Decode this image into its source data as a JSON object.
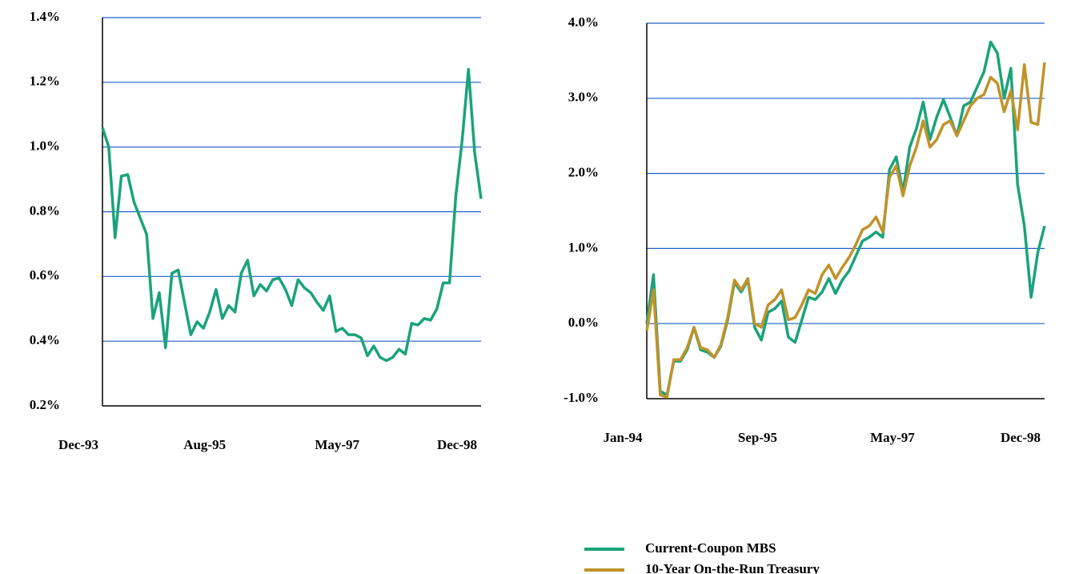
{
  "chart_data": [
    {
      "type": "line",
      "categories": [
        "Dec-93",
        null,
        null,
        null,
        null,
        null,
        null,
        null,
        null,
        null,
        null,
        null,
        null,
        null,
        null,
        null,
        null,
        null,
        null,
        null,
        "Aug-95",
        null,
        null,
        null,
        null,
        null,
        null,
        null,
        null,
        null,
        null,
        null,
        null,
        null,
        null,
        null,
        null,
        null,
        null,
        null,
        null,
        "May-97",
        null,
        null,
        null,
        null,
        null,
        null,
        null,
        null,
        null,
        null,
        null,
        null,
        null,
        null,
        null,
        null,
        null,
        null,
        "Dec-98"
      ],
      "series": [
        {
          "color": "#1aa37a",
          "values": [
            1.06,
            1.0,
            0.72,
            0.91,
            0.915,
            0.83,
            0.78,
            0.73,
            0.47,
            0.55,
            0.38,
            0.61,
            0.62,
            0.52,
            0.42,
            0.46,
            0.44,
            0.49,
            0.56,
            0.47,
            0.51,
            0.49,
            0.61,
            0.65,
            0.54,
            0.575,
            0.555,
            0.59,
            0.595,
            0.56,
            0.51,
            0.59,
            0.565,
            0.55,
            0.52,
            0.495,
            0.54,
            0.43,
            0.44,
            0.42,
            0.42,
            0.41,
            0.355,
            0.385,
            0.35,
            0.34,
            0.35,
            0.375,
            0.36,
            0.455,
            0.45,
            0.47,
            0.465,
            0.5,
            0.58,
            0.58,
            0.85,
            1.02,
            1.24,
            0.98,
            0.84
          ]
        }
      ],
      "ylim": [
        0.2,
        1.4
      ],
      "yticks": [
        {
          "value": 0.2,
          "label": "0.2%"
        },
        {
          "value": 0.4,
          "label": "0.4%"
        },
        {
          "value": 0.6,
          "label": "0.6%"
        },
        {
          "value": 0.8,
          "label": "0.8%"
        },
        {
          "value": 1.0,
          "label": "1.0%"
        },
        {
          "value": 1.2,
          "label": "1.2%"
        },
        {
          "value": 1.4,
          "label": "1.4%"
        }
      ],
      "grid": true
    },
    {
      "type": "line",
      "categories": [
        "Jan-94",
        null,
        null,
        null,
        null,
        null,
        null,
        null,
        null,
        null,
        null,
        null,
        null,
        null,
        null,
        null,
        null,
        null,
        null,
        null,
        "Sep-95",
        null,
        null,
        null,
        null,
        null,
        null,
        null,
        null,
        null,
        null,
        null,
        null,
        null,
        null,
        null,
        null,
        null,
        null,
        null,
        "May-97",
        null,
        null,
        null,
        null,
        null,
        null,
        null,
        null,
        null,
        null,
        null,
        null,
        null,
        null,
        null,
        null,
        null,
        null,
        "Dec-98"
      ],
      "series": [
        {
          "name": "Current-Coupon MBS",
          "color": "#1aa37a",
          "values": [
            0.0,
            0.65,
            -0.9,
            -0.95,
            -0.5,
            -0.5,
            -0.35,
            -0.05,
            -0.35,
            -0.38,
            -0.45,
            -0.3,
            0.05,
            0.55,
            0.42,
            0.58,
            -0.05,
            -0.22,
            0.15,
            0.2,
            0.3,
            -0.18,
            -0.25,
            0.05,
            0.35,
            0.32,
            0.42,
            0.6,
            0.4,
            0.58,
            0.7,
            0.9,
            1.1,
            1.15,
            1.22,
            1.15,
            2.05,
            2.22,
            1.75,
            2.35,
            2.6,
            2.95,
            2.45,
            2.75,
            2.98,
            2.75,
            2.5,
            2.9,
            2.95,
            3.15,
            3.35,
            3.75,
            3.6,
            3.0,
            3.4,
            1.85,
            1.3,
            0.35,
            0.95,
            1.3
          ]
        },
        {
          "name": "10-Year On-the-Run Treasury",
          "color": "#c0932a",
          "values": [
            -0.1,
            0.45,
            -0.95,
            -0.98,
            -0.48,
            -0.48,
            -0.32,
            -0.05,
            -0.32,
            -0.35,
            -0.45,
            -0.28,
            0.08,
            0.58,
            0.45,
            0.6,
            0.0,
            -0.05,
            0.25,
            0.32,
            0.45,
            0.05,
            0.08,
            0.25,
            0.45,
            0.4,
            0.65,
            0.78,
            0.6,
            0.75,
            0.88,
            1.05,
            1.25,
            1.3,
            1.42,
            1.22,
            1.95,
            2.1,
            1.7,
            2.1,
            2.35,
            2.7,
            2.35,
            2.45,
            2.65,
            2.7,
            2.5,
            2.7,
            2.9,
            3.0,
            3.05,
            3.28,
            3.2,
            2.82,
            3.1,
            2.58,
            3.45,
            2.68,
            2.65,
            3.48
          ]
        }
      ],
      "ylim": [
        -1.0,
        4.0
      ],
      "yticks": [
        {
          "value": -1.0,
          "label": "-1.0%"
        },
        {
          "value": 0.0,
          "label": "0.0%"
        },
        {
          "value": 1.0,
          "label": "1.0%"
        },
        {
          "value": 2.0,
          "label": "2.0%"
        },
        {
          "value": 3.0,
          "label": "3.0%"
        },
        {
          "value": 4.0,
          "label": "4.0%"
        }
      ],
      "grid": true
    }
  ]
}
